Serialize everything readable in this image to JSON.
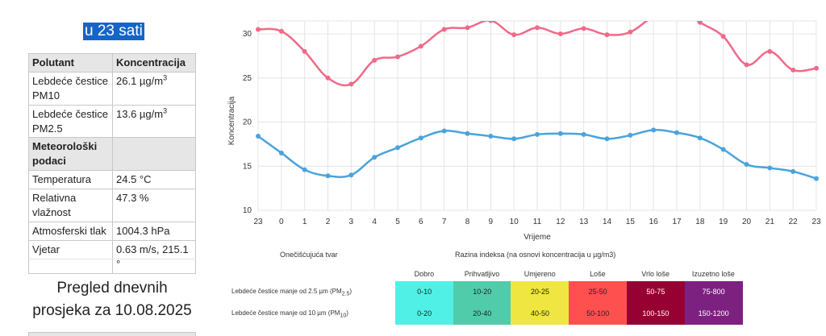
{
  "heading": "u 23 sati",
  "pollutants": {
    "col_pollutant": "Polutant",
    "col_concentration": "Koncentracija",
    "rows": [
      {
        "name_line1": "Lebdeće čestice",
        "name_line2": "PM10",
        "value": "26.1 µg/m",
        "sup": "3"
      },
      {
        "name_line1": "Lebdeće čestice",
        "name_line2": "PM2.5",
        "value": "13.6 µg/m",
        "sup": "3"
      }
    ]
  },
  "meteo": {
    "heading_line1": "Meteorološki",
    "heading_line2": "podaci",
    "rows": [
      {
        "name_line1": "Temperatura",
        "name_line2": "",
        "value": "24.5 °C"
      },
      {
        "name_line1": "Relativna",
        "name_line2": "vlažnost",
        "value": "47.3 %"
      },
      {
        "name_line1": "Atmosferski tlak",
        "name_line2": "",
        "value": "1004.3 hPa"
      },
      {
        "name_line1": "Vjetar",
        "name_line2": "",
        "value": "0.63 m/s, 215.1 °"
      }
    ]
  },
  "summary": {
    "line1": "Pregled dnevnih",
    "line2": "prosjeka za 10.08.2025"
  },
  "chart_data": {
    "type": "line",
    "xlabel": "Vrijeme",
    "ylabel": "Koncentracija",
    "categories": [
      "23",
      "0",
      "1",
      "2",
      "3",
      "4",
      "5",
      "6",
      "7",
      "8",
      "9",
      "10",
      "11",
      "12",
      "13",
      "14",
      "15",
      "16",
      "17",
      "18",
      "19",
      "20",
      "21",
      "22",
      "23"
    ],
    "y_ticks": [
      10,
      15,
      20,
      25,
      30
    ],
    "ylim": [
      10,
      31
    ],
    "grid": true,
    "series": [
      {
        "color": "#f06a8a",
        "values": [
          30.5,
          30.3,
          28.0,
          25.0,
          24.3,
          27.0,
          27.4,
          28.6,
          30.5,
          30.7,
          31.5,
          29.9,
          30.7,
          30.0,
          30.6,
          29.9,
          30.2,
          32.0,
          33.0,
          31.3,
          29.7,
          26.5,
          28.0,
          25.9,
          26.1
        ]
      },
      {
        "color": "#4aa3dd",
        "values": [
          18.4,
          16.5,
          14.6,
          13.9,
          14.0,
          16.0,
          17.1,
          18.2,
          19.0,
          18.7,
          18.4,
          18.1,
          18.6,
          18.7,
          18.6,
          18.1,
          18.5,
          19.1,
          18.8,
          18.2,
          16.9,
          15.2,
          14.8,
          14.4,
          13.6
        ]
      }
    ]
  },
  "index_table": {
    "pollutant_header": "Onečišćujuća tvar",
    "index_header": "Razina indeksa (na osnovi koncentracija u µg/m3)",
    "levels": [
      "Dobro",
      "Prihvatljivo",
      "Umjereno",
      "Loše",
      "Vrlo loše",
      "Izuzetno loše"
    ],
    "colors": [
      "#50f0e6",
      "#50ccaa",
      "#f0e641",
      "#ff5050",
      "#960032",
      "#7d2181"
    ],
    "rows": [
      {
        "label": "Lebdeće čestice manje od 2.5 µm (PM",
        "sub": "2.5",
        "close": ")",
        "ranges": [
          "0-10",
          "10-20",
          "20-25",
          "25-50",
          "50-75",
          "75-800"
        ]
      },
      {
        "label": "Lebdeće čestice manje od 10 µm (PM",
        "sub": "10",
        "close": ")",
        "ranges": [
          "0-20",
          "20-40",
          "40-50",
          "50-100",
          "100-150",
          "150-1200"
        ]
      }
    ]
  }
}
